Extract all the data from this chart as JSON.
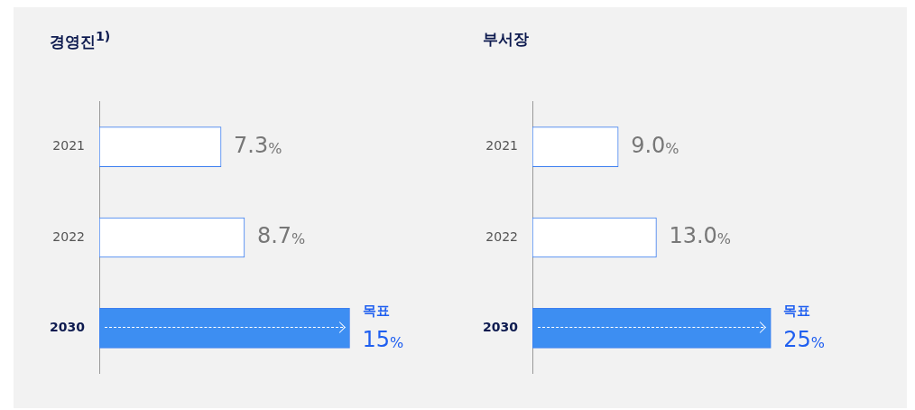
{
  "chart_data": [
    {
      "type": "bar",
      "orientation": "horizontal",
      "title": "경영진$^{1)}$",
      "categories": [
        "2021",
        "2022",
        "2030"
      ],
      "values": [
        7.3,
        8.7,
        15
      ],
      "colors": [
        "#ffffff",
        "#ffffff",
        "#3d8ef2"
      ],
      "value_labels": [
        "7.3%",
        "8.7%",
        "15%"
      ],
      "annotations": [
        {
          "text": "목표",
          "x": 15,
          "y": "2030"
        }
      ],
      "legend": false
    },
    {
      "type": "bar",
      "orientation": "horizontal",
      "title": "부서장",
      "categories": [
        "2021",
        "2022",
        "2030"
      ],
      "values": [
        9.0,
        13.0,
        25
      ],
      "colors": [
        "#ffffff",
        "#ffffff",
        "#3d8ef2"
      ],
      "value_labels": [
        "9.0%",
        "13.0%",
        "25%"
      ],
      "annotations": [
        {
          "text": "목표",
          "x": 25,
          "y": "2030"
        }
      ],
      "legend": false
    }
  ]
}
